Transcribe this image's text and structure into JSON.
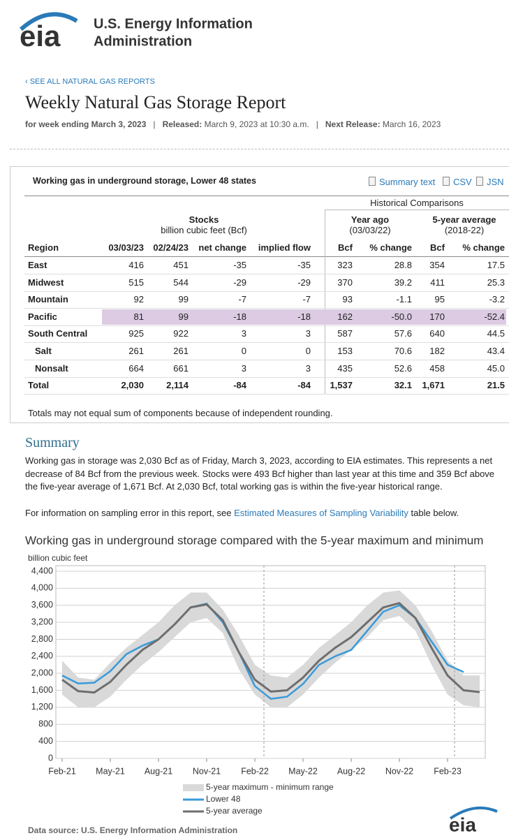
{
  "header": {
    "logo": "eia",
    "org_line1": "U.S. Energy Information",
    "org_line2": "Administration"
  },
  "back_link": "‹ SEE ALL NATURAL GAS REPORTS",
  "report_title": "Weekly Natural Gas Storage Report",
  "meta": {
    "week": "for week ending March 3, 2023",
    "separator": "|",
    "released_label": "Released:",
    "released": "March 9, 2023 at 10:30 a.m.",
    "next_label": "Next Release:",
    "next": "March 16, 2023"
  },
  "table": {
    "caption": "Working gas in underground storage, Lower 48 states",
    "links": [
      "Summary text",
      "CSV",
      "JSN"
    ],
    "historical": "Historical Comparisons",
    "stocks": "Stocks",
    "stocks_unit": "billion cubic feet (Bcf)",
    "year_ago": "Year ago",
    "year_ago_date": "(03/03/22)",
    "five_year": "5-year average",
    "five_year_range": "(2018-22)",
    "columns": [
      "Region",
      "03/03/23",
      "02/24/23",
      "net change",
      "implied flow",
      "Bcf",
      "% change",
      "Bcf",
      "% change"
    ],
    "rows": [
      {
        "cells": [
          "East",
          "416",
          "451",
          "-35",
          "-35",
          "323",
          "28.8",
          "354",
          "17.5"
        ]
      },
      {
        "cells": [
          "Midwest",
          "515",
          "544",
          "-29",
          "-29",
          "370",
          "39.2",
          "411",
          "25.3"
        ]
      },
      {
        "cells": [
          "Mountain",
          "92",
          "99",
          "-7",
          "-7",
          "93",
          "-1.1",
          "95",
          "-3.2"
        ]
      },
      {
        "cells": [
          "Pacific",
          "81",
          "99",
          "-18",
          "-18",
          "162",
          "-50.0",
          "170",
          "-52.4"
        ],
        "highlight": true
      },
      {
        "cells": [
          "South Central",
          "925",
          "922",
          "3",
          "3",
          "587",
          "57.6",
          "640",
          "44.5"
        ]
      },
      {
        "cells": [
          "Salt",
          "261",
          "261",
          "0",
          "0",
          "153",
          "70.6",
          "182",
          "43.4"
        ],
        "indent": true
      },
      {
        "cells": [
          "Nonsalt",
          "664",
          "661",
          "3",
          "3",
          "435",
          "52.6",
          "458",
          "45.0"
        ],
        "indent": true
      },
      {
        "cells": [
          "Total",
          "2,030",
          "2,114",
          "-84",
          "-84",
          "1,537",
          "32.1",
          "1,671",
          "21.5"
        ],
        "total": true
      }
    ],
    "note": "Totals may not equal sum of components because of independent rounding."
  },
  "summary": {
    "heading": "Summary",
    "paragraph": "Working gas in storage was 2,030 Bcf as of Friday, March 3, 2023, according to EIA estimates. This represents a net decrease of 84 Bcf from the previous week. Stocks were 493 Bcf higher than last year at this time and 359 Bcf above the five-year average of 1,671 Bcf. At 2,030 Bcf, total working gas is within the five-year historical range.",
    "sampling_before": "For information on sampling error in this report, see ",
    "sampling_link": "Estimated Measures of Sampling Variability",
    "sampling_after": " table below."
  },
  "chart_data": {
    "type": "line",
    "title": "Working gas in underground  storage compared with the 5-year maximum and minimum",
    "y_label": "billion cubic feet",
    "categories": [
      "Feb-21",
      null,
      null,
      "May-21",
      null,
      null,
      "Aug-21",
      null,
      null,
      "Nov-21",
      null,
      null,
      "Feb-22",
      null,
      null,
      "May-22",
      null,
      null,
      "Aug-22",
      null,
      null,
      "Nov-22",
      null,
      null,
      "Feb-23",
      null,
      null
    ],
    "ylim": [
      0,
      4400
    ],
    "yticks": [
      0,
      400,
      800,
      {
        "value": 1200,
        "label": "1,200"
      },
      {
        "value": 1600,
        "label": "1,600"
      },
      {
        "value": 2000,
        "label": "2,000"
      },
      {
        "value": 2400,
        "label": "2,400"
      },
      {
        "value": 2800,
        "label": "2,800"
      },
      {
        "value": 3200,
        "label": "3,200"
      },
      {
        "value": 3600,
        "label": "3,600"
      },
      {
        "value": 4000,
        "label": "4,000"
      },
      {
        "value": 4400,
        "label": "4,400"
      }
    ],
    "grid": true,
    "series": [
      {
        "name": "5-year maximum - minimum range",
        "color": "#d9d9d9",
        "type": "band",
        "upper": [
          2300,
          1900,
          1850,
          2250,
          2600,
          2900,
          3200,
          3600,
          3900,
          3900,
          3500,
          2900,
          2200,
          1950,
          1900,
          2200,
          2600,
          2900,
          3200,
          3600,
          3900,
          3950,
          3600,
          3000,
          2300,
          1950,
          1950
        ],
        "lower": [
          1500,
          1200,
          1200,
          1450,
          1850,
          2200,
          2500,
          2850,
          3200,
          3300,
          2950,
          2100,
          1500,
          1200,
          1200,
          1500,
          1900,
          2250,
          2550,
          2850,
          3250,
          3350,
          3000,
          2200,
          1500,
          1250,
          1200
        ]
      },
      {
        "name": "Lower 48",
        "color": "#3a9ad9",
        "values": [
          1950,
          1760,
          1780,
          2050,
          2450,
          2650,
          2800,
          3150,
          3550,
          3640,
          3200,
          2500,
          1700,
          1400,
          1450,
          1750,
          2200,
          2400,
          2550,
          3000,
          3450,
          3600,
          3300,
          2750,
          2200,
          2030,
          null
        ]
      },
      {
        "name": "5-year average",
        "color": "#6e6e6e",
        "values": [
          1850,
          1580,
          1550,
          1800,
          2200,
          2550,
          2800,
          3150,
          3550,
          3620,
          3250,
          2500,
          1850,
          1570,
          1600,
          1900,
          2300,
          2600,
          2850,
          3200,
          3550,
          3650,
          3300,
          2600,
          1950,
          1600,
          1560
        ]
      }
    ]
  },
  "footer": {
    "source": "Data source:  U.S. Energy Information Administration",
    "logo": "eia"
  }
}
